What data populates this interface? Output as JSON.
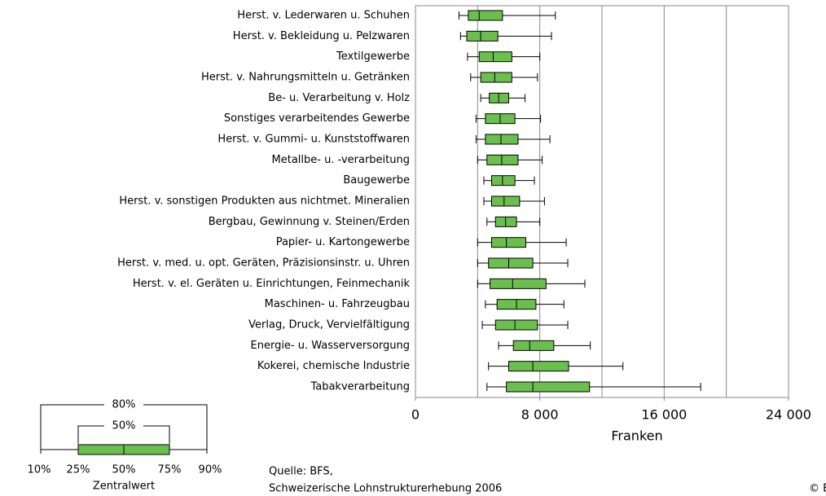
{
  "chart_data": {
    "type": "boxplot",
    "categories": [
      "Herst. v. Lederwaren u. Schuhen",
      "Herst. v. Bekleidung u. Pelzwaren",
      "Textilgewerbe",
      "Herst. v. Nahrungsmitteln u. Getränken",
      "Be- u. Verarbeitung v. Holz",
      "Sonstiges verarbeitendes Gewerbe",
      "Herst. v. Gummi- u. Kunststoffwaren",
      "Metallbe- u. -verarbeitung",
      "Baugewerbe",
      "Herst. v. sonstigen Produkten aus nichtmet. Mineralien",
      "Bergbau, Gewinnung v. Steinen/Erden",
      "Papier- u. Kartongewerbe",
      "Herst. v. med. u. opt. Geräten, Präzisionsinstr. u. Uhren",
      "Herst. v. el. Geräten u. Einrichtungen, Feinmechanik",
      "Maschinen- u. Fahrzeugbau",
      "Verlag, Druck, Vervielfältigung",
      "Energie- u. Wasserversorgung",
      "Kokerei, chemische Industrie",
      "Tabakverarbeitung"
    ],
    "p10": [
      2800,
      2900,
      3350,
      3550,
      4200,
      3900,
      3900,
      4000,
      4400,
      4400,
      4600,
      4000,
      4000,
      4000,
      4500,
      4300,
      5350,
      4700,
      4600
    ],
    "p25": [
      3400,
      3300,
      4100,
      4200,
      4750,
      4500,
      4500,
      4600,
      4900,
      4900,
      5150,
      4900,
      4700,
      4800,
      5250,
      5150,
      6300,
      6000,
      5850
    ],
    "median": [
      4100,
      4200,
      5000,
      5100,
      5350,
      5450,
      5500,
      5550,
      5600,
      5700,
      5800,
      5850,
      6000,
      6250,
      6500,
      6400,
      7350,
      7550,
      7550
    ],
    "p75": [
      5600,
      5300,
      6200,
      6200,
      6000,
      6400,
      6600,
      6600,
      6400,
      6700,
      6500,
      7100,
      7550,
      8400,
      7750,
      7850,
      8900,
      9850,
      11200
    ],
    "p90": [
      9000,
      8750,
      8000,
      7850,
      7050,
      8050,
      8650,
      8150,
      7650,
      8300,
      8000,
      9700,
      9800,
      10900,
      9550,
      9800,
      11250,
      13350,
      18350
    ],
    "color": "#6bbf4e",
    "xlabel": "Franken",
    "xlim": [
      0,
      24000
    ],
    "xticks": [
      0,
      {
        "value": 8000,
        "label": "8 000"
      },
      {
        "value": 16000,
        "label": "16 000"
      },
      {
        "value": 24000,
        "label": "24 000"
      }
    ],
    "grid_step": 4000,
    "grid": true,
    "legend": {
      "outer": "80%",
      "inner": "50%",
      "labels": [
        "10%",
        "25%",
        "50%",
        "75%",
        "90%"
      ],
      "caption": "Zentralwert"
    },
    "source": [
      "Quelle: BFS,",
      "Schweizerische Lohnstrukturerhebung 2006"
    ],
    "copyright": "© B"
  }
}
